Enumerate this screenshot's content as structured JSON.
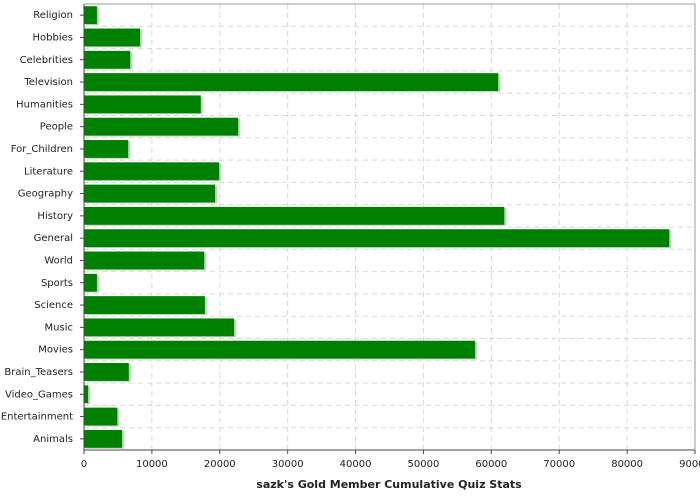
{
  "chart_data": {
    "type": "barh",
    "xlabel": "sazk's Gold Member Cumulative Quiz Stats",
    "categories": [
      "Religion",
      "Hobbies",
      "Celebrities",
      "Television",
      "Humanities",
      "People",
      "For_Children",
      "Literature",
      "Geography",
      "History",
      "General",
      "World",
      "Sports",
      "Science",
      "Music",
      "Movies",
      "Brain_Teasers",
      "Video_Games",
      "Entertainment",
      "Animals"
    ],
    "values": [
      1900,
      8250,
      6800,
      61000,
      17200,
      22700,
      6500,
      19900,
      19300,
      61900,
      86200,
      17700,
      1900,
      17800,
      22100,
      57600,
      6600,
      600,
      4900,
      5600
    ],
    "color": "#008000",
    "xlim": [
      0,
      90000
    ],
    "xticks": [
      0,
      10000,
      20000,
      30000,
      40000,
      50000,
      60000,
      70000,
      80000,
      90000
    ],
    "grid": true
  }
}
